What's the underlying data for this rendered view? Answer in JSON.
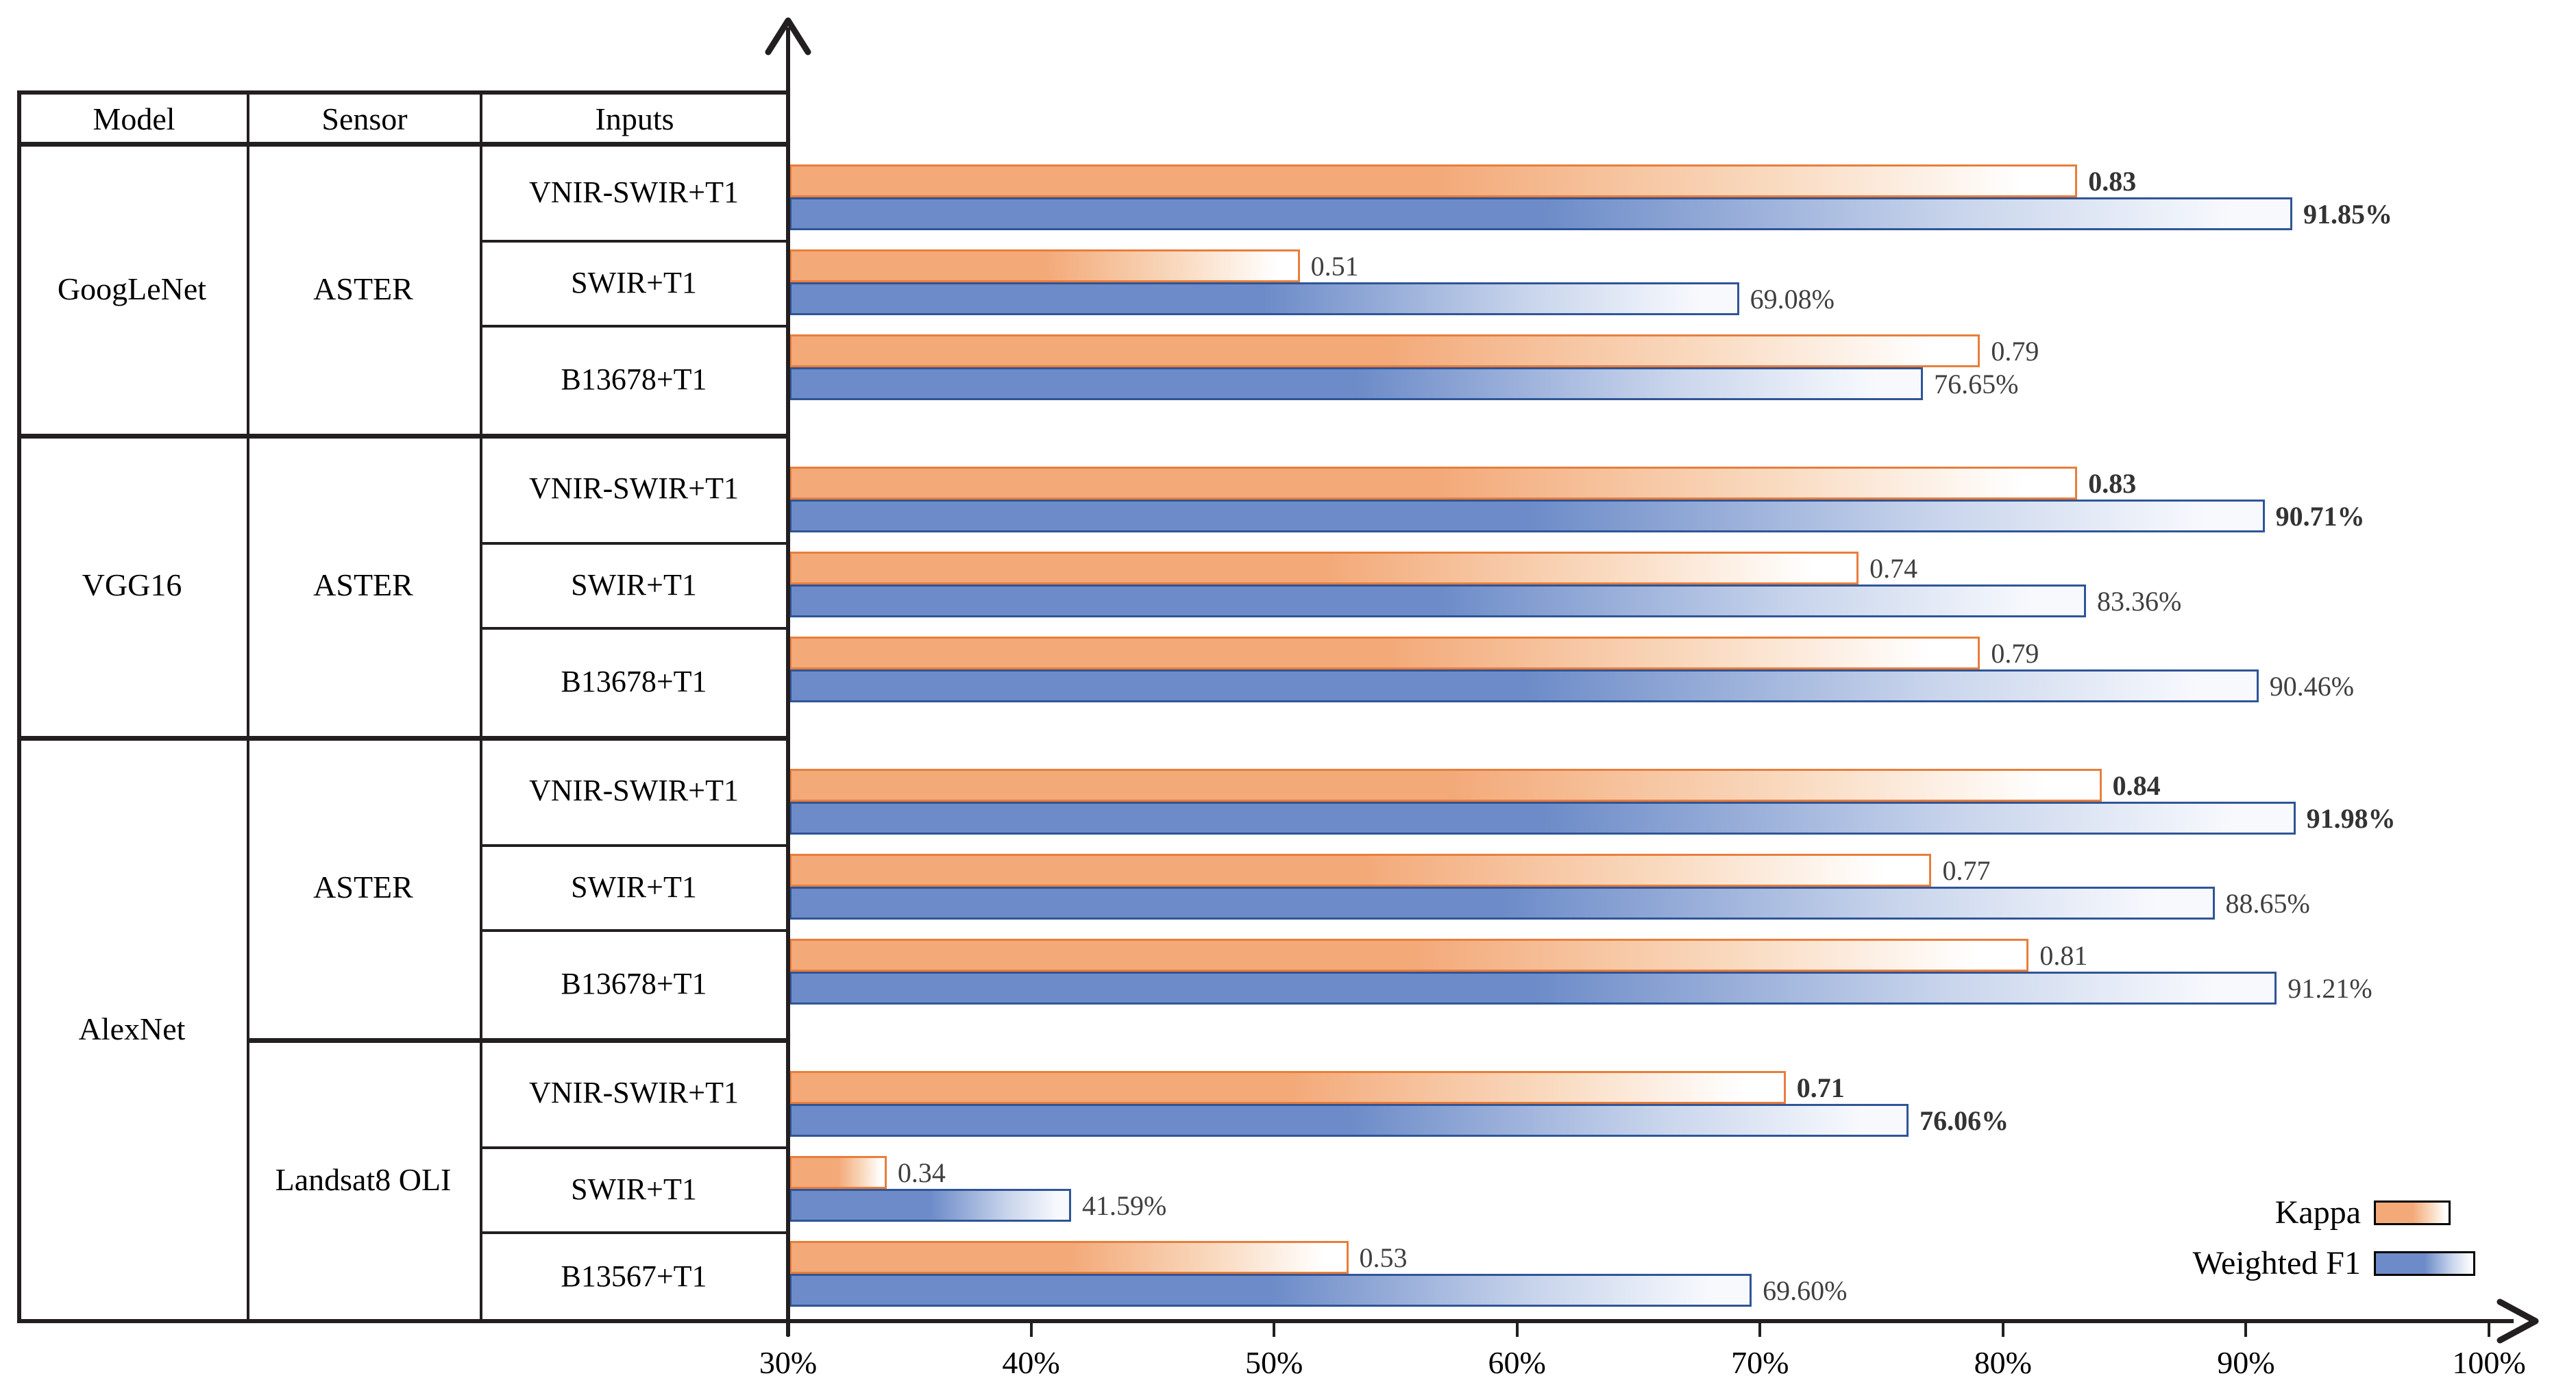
{
  "chart_data": {
    "type": "bar",
    "orientation": "horizontal",
    "table_headers": [
      "Model",
      "Sensor",
      "Inputs"
    ],
    "x_axis": {
      "min": 30,
      "max": 100,
      "unit": "%",
      "tick_labels": [
        "30%",
        "40%",
        "50%",
        "60%",
        "70%",
        "80%",
        "90%",
        "100%"
      ]
    },
    "legend": {
      "position": "bottom-right",
      "items": [
        {
          "name": "Kappa",
          "fill": "#F3A978",
          "border": "#E87E3C"
        },
        {
          "name": "Weighted F1",
          "fill": "#6C8BC8",
          "border": "#2F5597"
        }
      ]
    },
    "series": [
      {
        "name": "Kappa"
      },
      {
        "name": "Weighted F1"
      }
    ],
    "groups": [
      {
        "model": "GoogLeNet",
        "sensor": "ASTER",
        "rows": [
          {
            "input": "VNIR-SWIR+T1",
            "kappa": 0.83,
            "kappa_label": "0.83",
            "weighted_f1": 91.85,
            "weighted_f1_label": "91.85%",
            "highlight": true
          },
          {
            "input": "SWIR+T1",
            "kappa": 0.51,
            "kappa_label": "0.51",
            "weighted_f1": 69.08,
            "weighted_f1_label": "69.08%",
            "highlight": false
          },
          {
            "input": "B13678+T1",
            "kappa": 0.79,
            "kappa_label": "0.79",
            "weighted_f1": 76.65,
            "weighted_f1_label": "76.65%",
            "highlight": false
          }
        ]
      },
      {
        "model": "VGG16",
        "sensor": "ASTER",
        "rows": [
          {
            "input": "VNIR-SWIR+T1",
            "kappa": 0.83,
            "kappa_label": "0.83",
            "weighted_f1": 90.71,
            "weighted_f1_label": "90.71%",
            "highlight": true
          },
          {
            "input": "SWIR+T1",
            "kappa": 0.74,
            "kappa_label": "0.74",
            "weighted_f1": 83.36,
            "weighted_f1_label": "83.36%",
            "highlight": false
          },
          {
            "input": "B13678+T1",
            "kappa": 0.79,
            "kappa_label": "0.79",
            "weighted_f1": 90.46,
            "weighted_f1_label": "90.46%",
            "highlight": false
          }
        ]
      },
      {
        "model": "AlexNet",
        "sensor": "ASTER",
        "rows": [
          {
            "input": "VNIR-SWIR+T1",
            "kappa": 0.84,
            "kappa_label": "0.84",
            "weighted_f1": 91.98,
            "weighted_f1_label": "91.98%",
            "highlight": true
          },
          {
            "input": "SWIR+T1",
            "kappa": 0.77,
            "kappa_label": "0.77",
            "weighted_f1": 88.65,
            "weighted_f1_label": "88.65%",
            "highlight": false
          },
          {
            "input": "B13678+T1",
            "kappa": 0.81,
            "kappa_label": "0.81",
            "weighted_f1": 91.21,
            "weighted_f1_label": "91.21%",
            "highlight": false
          }
        ]
      },
      {
        "model": "AlexNet",
        "sensor": "Landsat8 OLI",
        "rows": [
          {
            "input": "VNIR-SWIR+T1",
            "kappa": 0.71,
            "kappa_label": "0.71",
            "weighted_f1": 76.06,
            "weighted_f1_label": "76.06%",
            "highlight": true
          },
          {
            "input": "SWIR+T1",
            "kappa": 0.34,
            "kappa_label": "0.34",
            "weighted_f1": 41.59,
            "weighted_f1_label": "41.59%",
            "highlight": false
          },
          {
            "input": "B13567+T1",
            "kappa": 0.53,
            "kappa_label": "0.53",
            "weighted_f1": 69.6,
            "weighted_f1_label": "69.60%",
            "highlight": false
          }
        ]
      }
    ]
  }
}
